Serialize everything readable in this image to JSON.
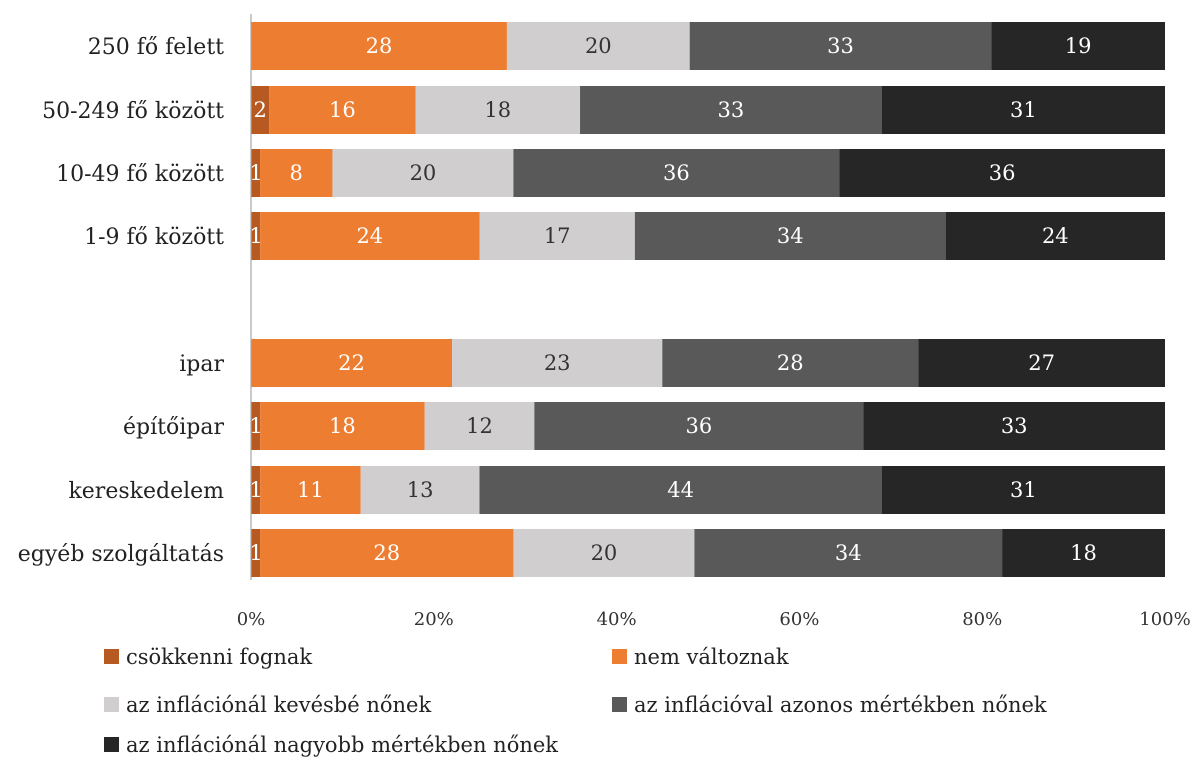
{
  "chart_data": {
    "type": "bar",
    "orientation": "horizontal",
    "stacked": true,
    "percent_stacked": true,
    "categories": [
      "250 fő felett",
      "50-249 fő között",
      "10-49 fő között",
      "1-9 fő között",
      "ipar",
      "építőipar",
      "kereskedelem",
      "egyéb szolgáltatás"
    ],
    "groups": [
      [
        0,
        1,
        2,
        3
      ],
      [
        4,
        5,
        6,
        7
      ]
    ],
    "series": [
      {
        "name": "csökkenni fognak",
        "color": "#b65a22",
        "label_color": "#ffffff",
        "values": [
          0,
          2,
          1,
          1,
          0,
          1,
          1,
          1
        ],
        "value_labels": [
          "",
          "2",
          "1",
          "1",
          "",
          "1",
          "1",
          "1"
        ]
      },
      {
        "name": "nem változnak",
        "color": "#ed7d31",
        "label_color": "#ffffff",
        "values": [
          28,
          16,
          8,
          24,
          22,
          18,
          11,
          28
        ],
        "value_labels": [
          "28",
          "16",
          "8",
          "24",
          "22",
          "18",
          "11",
          "28"
        ]
      },
      {
        "name": "az inflációnál kevésbé nőnek",
        "color": "#d0cece",
        "label_color": "#333333",
        "values": [
          20,
          18,
          20,
          17,
          23,
          12,
          13,
          20
        ],
        "value_labels": [
          "20",
          "18",
          "20",
          "17",
          "23",
          "12",
          "13",
          "20"
        ]
      },
      {
        "name": "az inflációval azonos mértékben nőnek",
        "color": "#595959",
        "label_color": "#ffffff",
        "values": [
          33,
          33,
          36,
          34,
          28,
          36,
          44,
          34
        ],
        "value_labels": [
          "33",
          "33",
          "36",
          "34",
          "28",
          "36",
          "44",
          "34"
        ]
      },
      {
        "name": "az inflációnál nagyobb mértékben nőnek",
        "color": "#262626",
        "label_color": "#ffffff",
        "values": [
          19,
          31,
          36,
          24,
          27,
          33,
          31,
          18
        ],
        "value_labels": [
          "19",
          "31",
          "36",
          "24",
          "27",
          "33",
          "31",
          "18"
        ]
      }
    ],
    "x_ticks": [
      "0%",
      "20%",
      "40%",
      "60%",
      "80%",
      "100%"
    ],
    "xlim": [
      0,
      100
    ],
    "grid": false,
    "legend_position": "bottom"
  }
}
